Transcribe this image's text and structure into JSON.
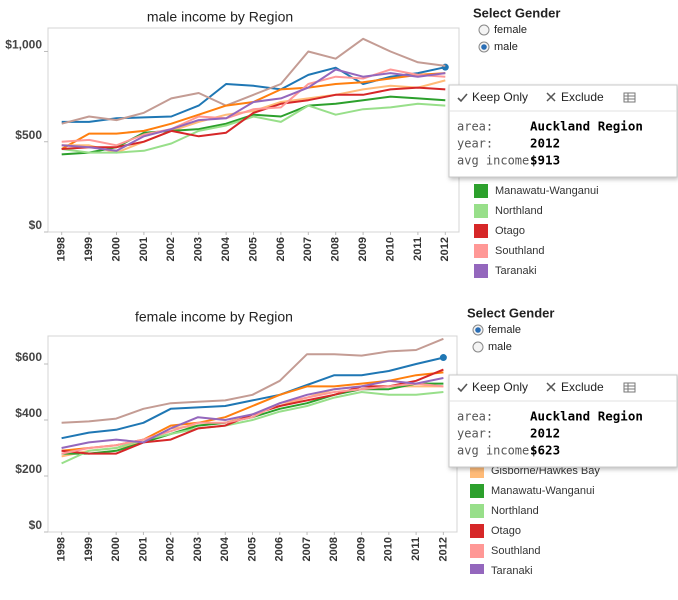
{
  "chart_data": [
    {
      "type": "line",
      "title": "male income by Region",
      "x": [
        1998,
        1999,
        2000,
        2001,
        2002,
        2003,
        2004,
        2005,
        2006,
        2007,
        2008,
        2009,
        2010,
        2011,
        2012
      ],
      "xticks": [
        1998,
        1999,
        2000,
        2001,
        2002,
        2003,
        2004,
        2005,
        2006,
        2007,
        2008,
        2009,
        2010,
        2011,
        2012
      ],
      "xlim": [
        1997.5,
        2012.5
      ],
      "ylim": [
        0,
        1130
      ],
      "yticks": [
        {
          "value": 0,
          "label": "$0"
        },
        {
          "value": 500,
          "label": "$500"
        },
        {
          "value": 1000,
          "label": "$1,000"
        }
      ],
      "series": [
        {
          "color": "#1f77b4",
          "marker": "end",
          "values": [
            610,
            610,
            630,
            635,
            640,
            700,
            820,
            810,
            790,
            870,
            910,
            820,
            860,
            880,
            913
          ]
        },
        {
          "color": "#c49c94",
          "values": [
            600,
            640,
            620,
            660,
            740,
            770,
            700,
            760,
            820,
            1000,
            960,
            1070,
            1000,
            940,
            920
          ]
        },
        {
          "color": "#ff7f0e",
          "values": [
            460,
            545,
            545,
            560,
            600,
            650,
            700,
            720,
            790,
            800,
            820,
            830,
            850,
            870,
            880
          ]
        },
        {
          "color": "#ffbb78",
          "values": [
            480,
            480,
            440,
            500,
            560,
            610,
            650,
            670,
            720,
            740,
            760,
            790,
            810,
            800,
            840
          ]
        },
        {
          "name": "Manawatu-Wanganui",
          "color": "#2ca02c",
          "values": [
            430,
            440,
            470,
            550,
            560,
            570,
            600,
            650,
            640,
            700,
            710,
            730,
            750,
            740,
            730
          ]
        },
        {
          "name": "Northland",
          "color": "#98df8a",
          "values": [
            460,
            440,
            440,
            450,
            490,
            560,
            590,
            640,
            610,
            700,
            650,
            680,
            690,
            710,
            700
          ]
        },
        {
          "name": "Otago",
          "color": "#d62728",
          "values": [
            460,
            470,
            470,
            500,
            560,
            530,
            550,
            660,
            710,
            730,
            760,
            760,
            790,
            800,
            790
          ]
        },
        {
          "name": "Southland",
          "color": "#ff9896",
          "values": [
            500,
            510,
            480,
            540,
            570,
            640,
            630,
            680,
            690,
            820,
            860,
            850,
            900,
            870,
            860
          ]
        },
        {
          "name": "Taranaki",
          "color": "#9467bd",
          "values": [
            480,
            470,
            450,
            530,
            570,
            620,
            630,
            720,
            740,
            800,
            900,
            860,
            880,
            860,
            880
          ]
        }
      ],
      "filter": {
        "title": "Select Gender",
        "options": [
          "female",
          "male"
        ],
        "selected": "male"
      },
      "tooltip": {
        "actions": [
          "Keep Only",
          "Exclude"
        ],
        "fields": [
          {
            "label": "area:",
            "value": "Auckland Region"
          },
          {
            "label": "year:",
            "value": "2012"
          },
          {
            "label": "avg income:",
            "value": "$913"
          }
        ]
      }
    },
    {
      "type": "line",
      "title": "female income by Region",
      "x": [
        1998,
        1999,
        2000,
        2001,
        2002,
        2003,
        2004,
        2005,
        2006,
        2007,
        2008,
        2009,
        2010,
        2011,
        2012
      ],
      "xticks": [
        1998,
        1999,
        2000,
        2001,
        2002,
        2003,
        2004,
        2005,
        2006,
        2007,
        2008,
        2009,
        2010,
        2011,
        2012
      ],
      "xlim": [
        1997.5,
        2012.5
      ],
      "ylim": [
        0,
        700
      ],
      "yticks": [
        {
          "value": 0,
          "label": "$0"
        },
        {
          "value": 200,
          "label": "$200"
        },
        {
          "value": 400,
          "label": "$400"
        },
        {
          "value": 600,
          "label": "$600"
        }
      ],
      "series": [
        {
          "color": "#1f77b4",
          "marker": "end",
          "values": [
            335,
            355,
            365,
            390,
            440,
            445,
            450,
            470,
            490,
            525,
            560,
            560,
            575,
            600,
            623
          ]
        },
        {
          "color": "#c49c94",
          "values": [
            390,
            395,
            405,
            440,
            460,
            465,
            470,
            490,
            540,
            635,
            635,
            630,
            645,
            650,
            690
          ]
        },
        {
          "color": "#ff7f0e",
          "values": [
            290,
            300,
            310,
            330,
            380,
            390,
            410,
            450,
            490,
            520,
            520,
            530,
            540,
            560,
            570
          ]
        },
        {
          "name": "Gisborne/Hawkes Bay",
          "color": "#ffbb78",
          "values": [
            270,
            290,
            300,
            320,
            370,
            380,
            390,
            420,
            450,
            480,
            510,
            520,
            520,
            520,
            520
          ]
        },
        {
          "name": "Manawatu-Wanganui",
          "color": "#2ca02c",
          "values": [
            280,
            280,
            290,
            320,
            350,
            380,
            390,
            410,
            440,
            460,
            490,
            510,
            510,
            530,
            530
          ]
        },
        {
          "name": "Northland",
          "color": "#98df8a",
          "values": [
            245,
            290,
            300,
            330,
            350,
            370,
            380,
            400,
            430,
            450,
            480,
            500,
            490,
            490,
            500
          ]
        },
        {
          "name": "Otago",
          "color": "#d62728",
          "values": [
            290,
            280,
            280,
            320,
            330,
            370,
            380,
            420,
            450,
            470,
            490,
            520,
            520,
            540,
            580
          ]
        },
        {
          "name": "Southland",
          "color": "#ff9896",
          "values": [
            280,
            300,
            310,
            330,
            360,
            390,
            390,
            410,
            460,
            480,
            500,
            510,
            520,
            530,
            520
          ]
        },
        {
          "name": "Taranaki",
          "color": "#9467bd",
          "values": [
            300,
            320,
            330,
            320,
            370,
            410,
            400,
            420,
            460,
            490,
            510,
            520,
            540,
            530,
            550
          ]
        }
      ],
      "filter": {
        "title": "Select Gender",
        "options": [
          "female",
          "male"
        ],
        "selected": "female"
      },
      "tooltip": {
        "actions": [
          "Keep Only",
          "Exclude"
        ],
        "fields": [
          {
            "label": "area:",
            "value": "Auckland Region"
          },
          {
            "label": "year:",
            "value": "2012"
          },
          {
            "label": "avg income:",
            "value": "$623"
          }
        ]
      }
    }
  ]
}
